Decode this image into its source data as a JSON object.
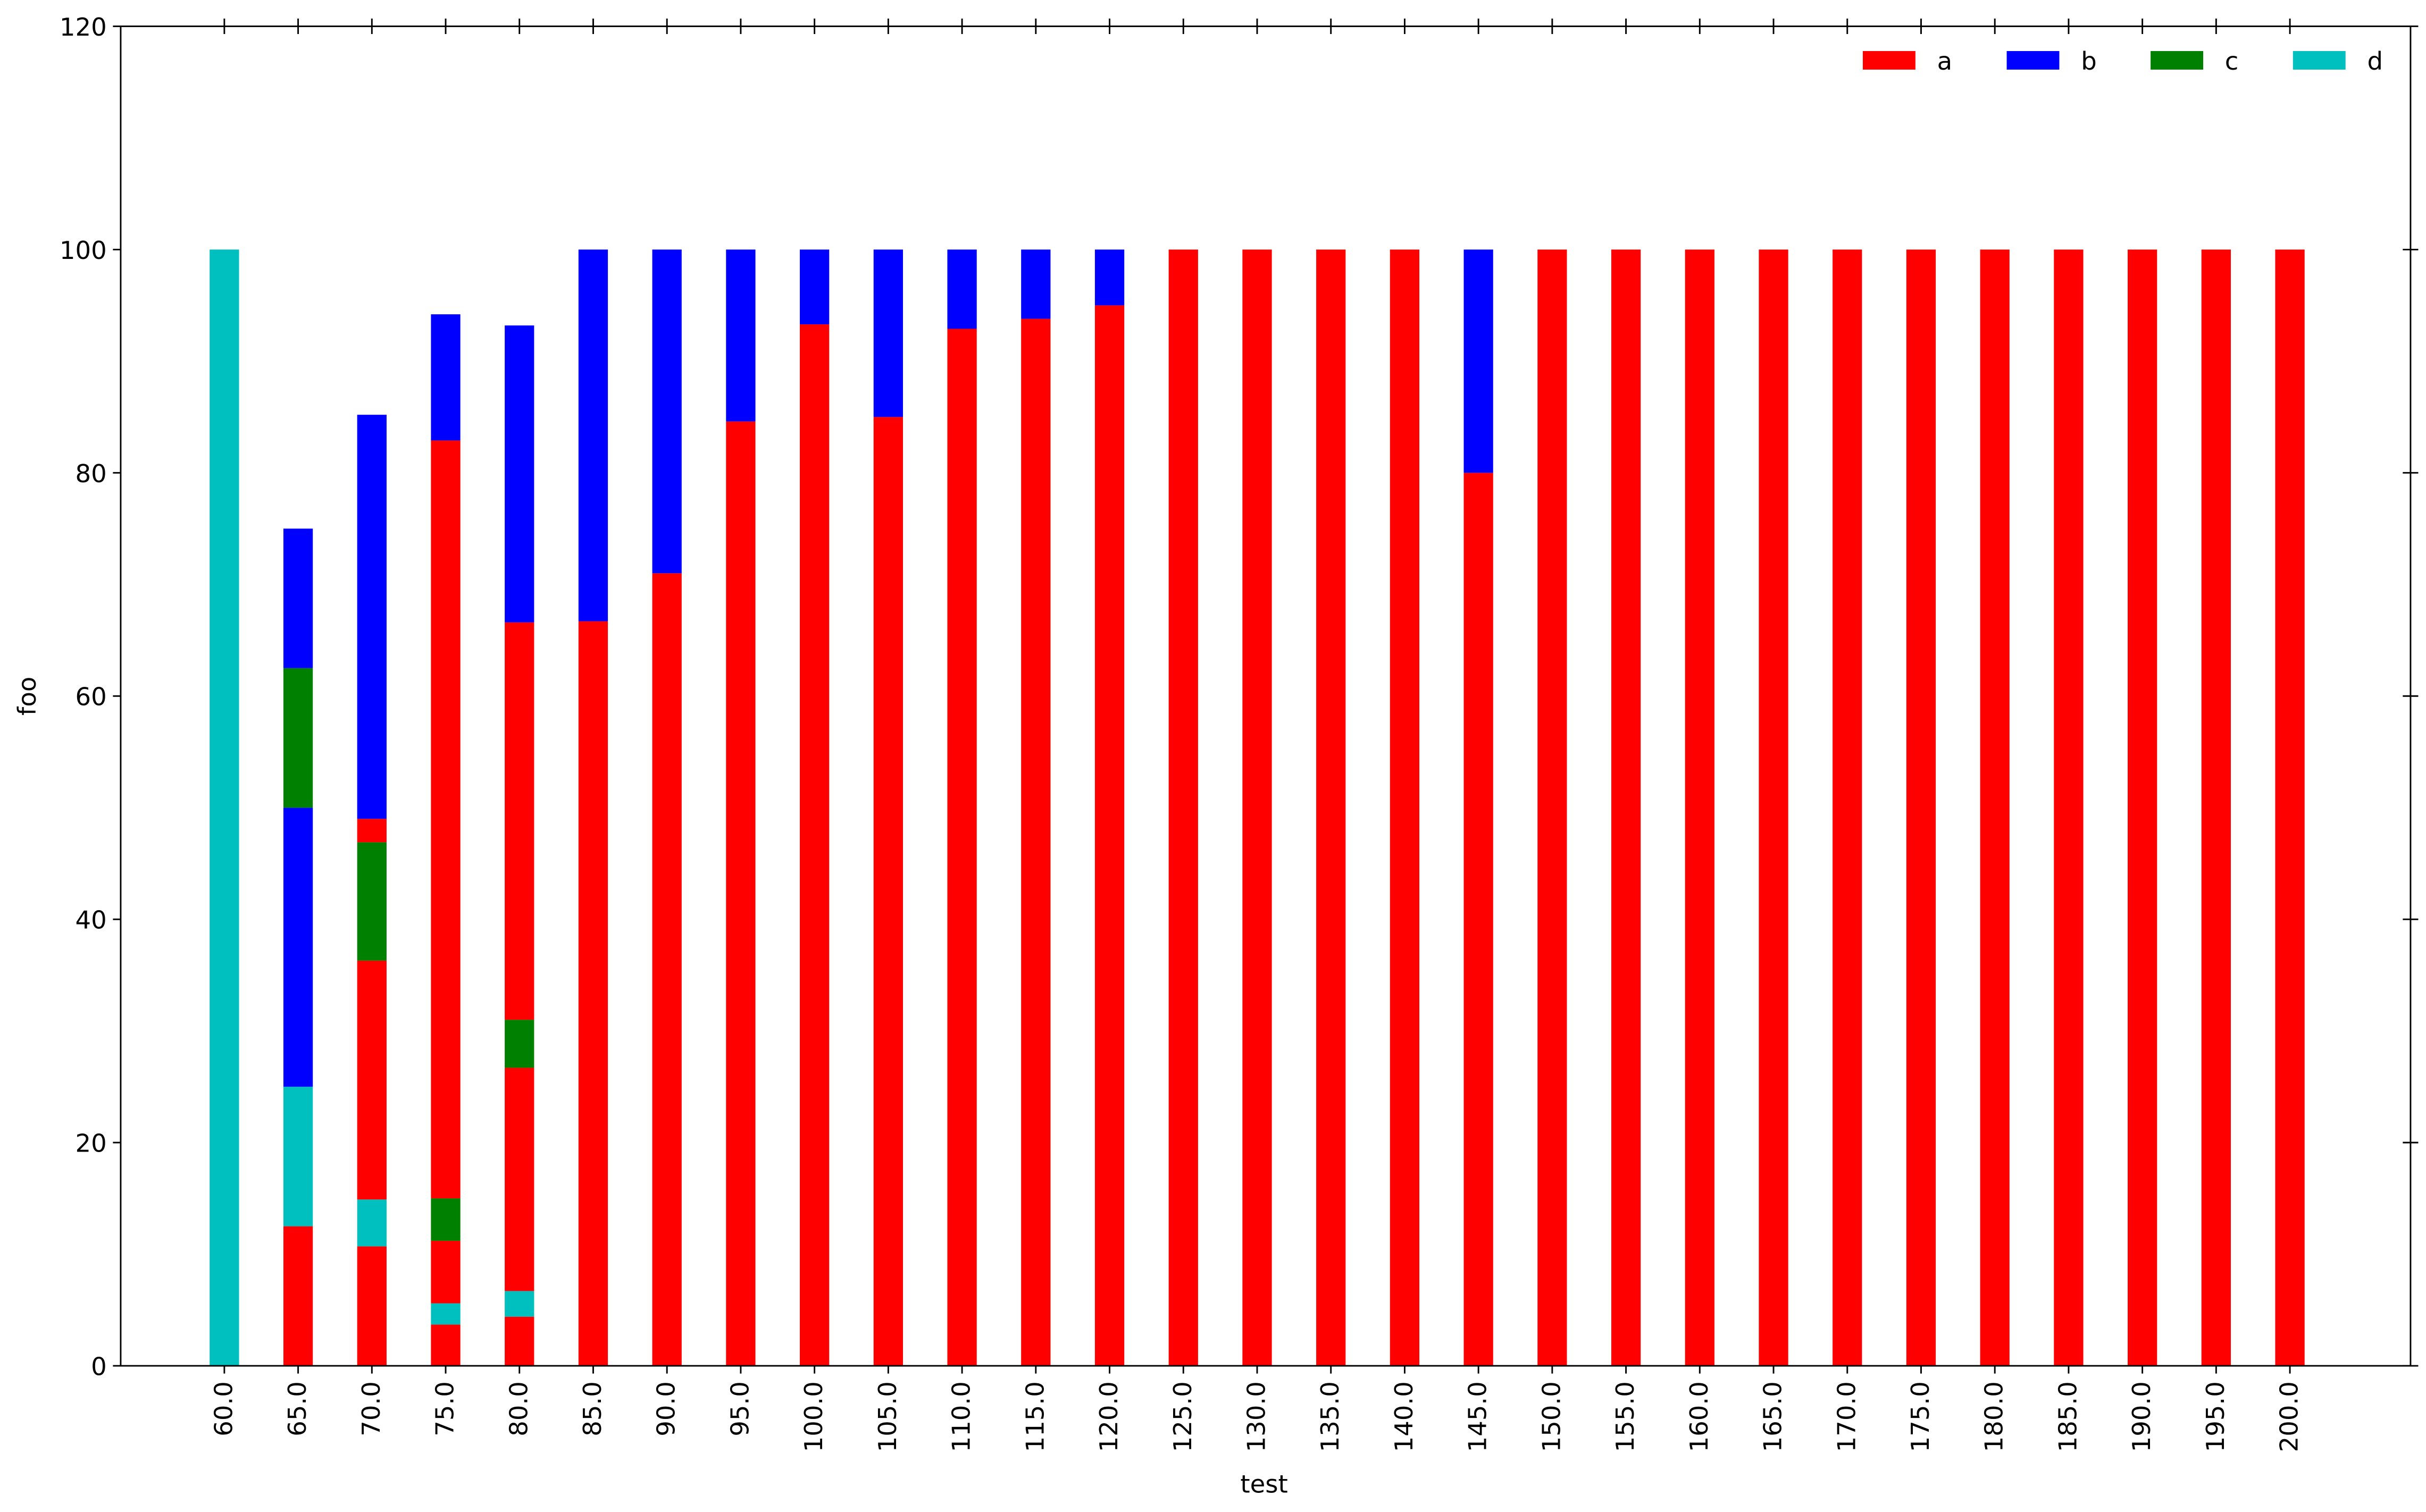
{
  "chart_data": {
    "type": "bar",
    "stacked": true,
    "x_label": "test",
    "y_label": "foo",
    "categories": [
      "60.0",
      "65.0",
      "70.0",
      "75.0",
      "80.0",
      "85.0",
      "90.0",
      "95.0",
      "100.0",
      "105.0",
      "110.0",
      "115.0",
      "120.0",
      "125.0",
      "130.0",
      "135.0",
      "140.0",
      "145.0",
      "150.0",
      "155.0",
      "160.0",
      "165.0",
      "170.0",
      "175.0",
      "180.0",
      "185.0",
      "190.0",
      "195.0",
      "200.0"
    ],
    "series": [
      {
        "name": "a",
        "color": "#ff0000"
      },
      {
        "name": "b",
        "color": "#0000ff"
      },
      {
        "name": "c",
        "color": "#008000"
      },
      {
        "name": "d",
        "color": "#00bfbf"
      }
    ],
    "layers": [
      {
        "series": 0,
        "values": [
          0,
          12.5,
          10.7,
          3.7,
          4.4,
          66.7,
          71,
          84.6,
          93.3,
          85,
          92.9,
          93.8,
          95,
          100,
          100,
          100,
          100,
          80,
          100,
          100,
          100,
          100,
          100,
          100,
          100,
          100,
          100,
          100,
          100
        ]
      },
      {
        "series": 3,
        "values": [
          100,
          12.5,
          4.2,
          1.9,
          2.3,
          0,
          0,
          0,
          0,
          0,
          0,
          0,
          0,
          0,
          0,
          0,
          0,
          0,
          0,
          0,
          0,
          0,
          0,
          0,
          0,
          0,
          0,
          0,
          0
        ]
      },
      {
        "series": 0,
        "values": [
          0,
          0,
          21.4,
          5.6,
          20.0,
          0,
          0,
          0,
          0,
          0,
          0,
          0,
          0,
          0,
          0,
          0,
          0,
          0,
          0,
          0,
          0,
          0,
          0,
          0,
          0,
          0,
          0,
          0,
          0
        ]
      },
      {
        "series": 1,
        "values": [
          0,
          25,
          0,
          0,
          0,
          0,
          0,
          0,
          0,
          0,
          0,
          0,
          0,
          0,
          0,
          0,
          0,
          0,
          0,
          0,
          0,
          0,
          0,
          0,
          0,
          0,
          0,
          0,
          0
        ]
      },
      {
        "series": 2,
        "values": [
          0,
          12.5,
          10.6,
          3.8,
          4.3,
          0,
          0,
          0,
          0,
          0,
          0,
          0,
          0,
          0,
          0,
          0,
          0,
          0,
          0,
          0,
          0,
          0,
          0,
          0,
          0,
          0,
          0,
          0,
          0
        ]
      },
      {
        "series": 0,
        "values": [
          0,
          0,
          2.1,
          67.9,
          35.6,
          0,
          0,
          0,
          0,
          0,
          0,
          0,
          0,
          0,
          0,
          0,
          0,
          0,
          0,
          0,
          0,
          0,
          0,
          0,
          0,
          0,
          0,
          0,
          0
        ]
      },
      {
        "series": 1,
        "values": [
          0,
          12.5,
          36.2,
          11.3,
          26.6,
          33.3,
          29,
          15.4,
          6.7,
          15,
          7.1,
          6.2,
          5,
          0,
          0,
          0,
          0,
          20,
          0,
          0,
          0,
          0,
          0,
          0,
          0,
          0,
          0,
          0,
          0
        ]
      }
    ],
    "ylim": [
      0,
      120
    ],
    "yticks": [
      0,
      20,
      40,
      60,
      80,
      100,
      120
    ],
    "legend": "upper right"
  }
}
